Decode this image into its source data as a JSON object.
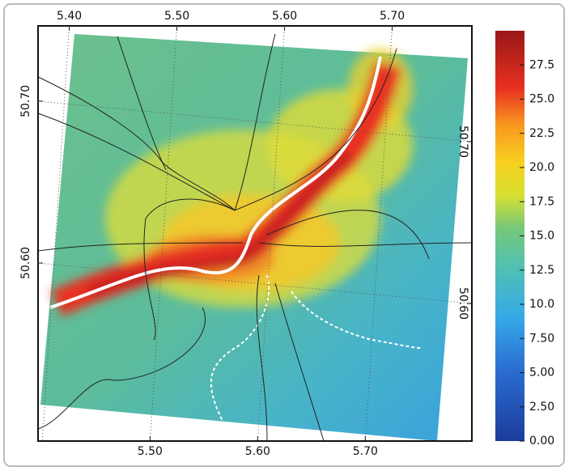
{
  "map": {
    "top_ticks": [
      {
        "value": 5.4,
        "label": "5.40"
      },
      {
        "value": 5.5,
        "label": "5.50"
      },
      {
        "value": 5.6,
        "label": "5.60"
      },
      {
        "value": 5.7,
        "label": "5.70"
      }
    ],
    "top_xlim": [
      5.371,
      5.774
    ],
    "bottom_ticks": [
      {
        "value": 5.5,
        "label": "5.50"
      },
      {
        "value": 5.6,
        "label": "5.60"
      },
      {
        "value": 5.7,
        "label": "5.70"
      }
    ],
    "bottom_xlim": [
      5.396,
      5.799
    ],
    "left_ticks": [
      {
        "value": 50.7,
        "label": "50.70"
      },
      {
        "value": 50.6,
        "label": "50.60"
      }
    ],
    "left_ylim": [
      50.49,
      50.7465
    ],
    "right_ticks": [
      {
        "value": 50.7,
        "label": "50.70"
      },
      {
        "value": 50.6,
        "label": "50.60"
      }
    ],
    "right_ylim": [
      50.515,
      50.7715
    ]
  },
  "colorbar": {
    "range": [
      0,
      30
    ],
    "ticks": [
      {
        "value": 0,
        "label": "0.00"
      },
      {
        "value": 2.5,
        "label": "2.50"
      },
      {
        "value": 5,
        "label": "5.00"
      },
      {
        "value": 7.5,
        "label": "7.50"
      },
      {
        "value": 10,
        "label": "10.0"
      },
      12.5,
      {
        "value": 15,
        "label": "15.0"
      },
      17.5,
      {
        "value": 20,
        "label": "20.0"
      },
      22.5,
      {
        "value": 25,
        "label": "25.0"
      },
      27.5
    ]
  }
}
